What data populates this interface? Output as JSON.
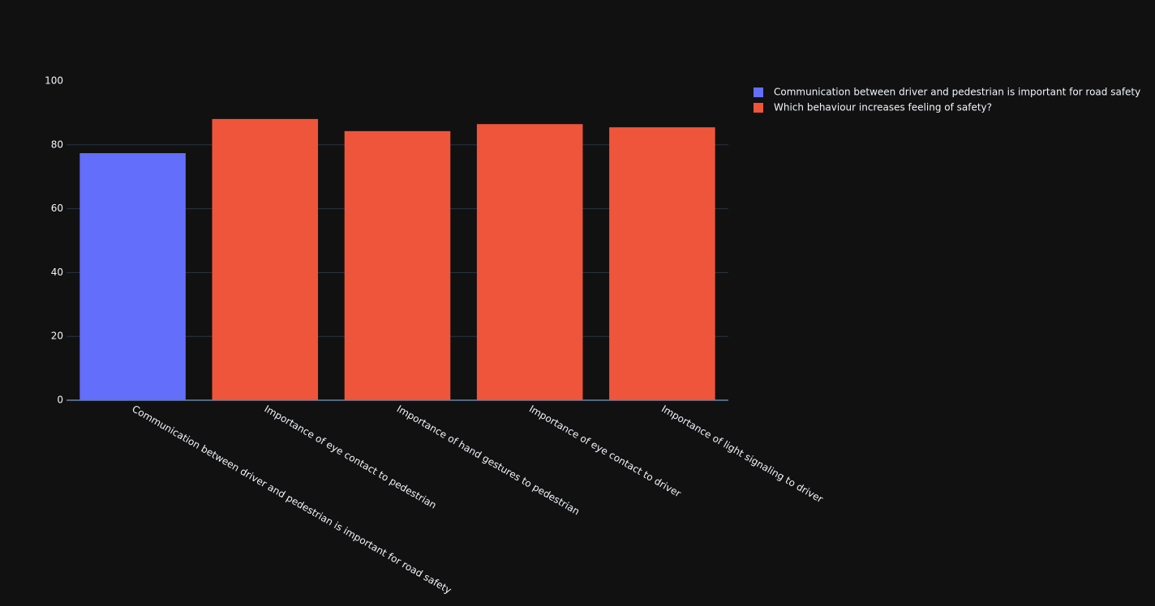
{
  "chart_data": {
    "type": "bar",
    "categories": [
      "Communication between driver and pedestrian is important for road safety",
      "Importance of eye contact to pedestrian",
      "Importance of hand gestures to pedestrian",
      "Importance of eye contact to driver",
      "Importance of light signaling to driver"
    ],
    "series": [
      {
        "name": "Communication between driver and pedestrian is important for road safety",
        "color": "#636efa",
        "values": [
          77.4,
          null,
          null,
          null,
          null
        ]
      },
      {
        "name": "Which behaviour increases feeling of safety?",
        "color": "#ef553b",
        "values": [
          null,
          88.1,
          84.3,
          86.5,
          85.5
        ]
      }
    ],
    "ylim": [
      0,
      100
    ],
    "yticks": [
      0,
      20,
      40,
      60,
      80,
      100
    ],
    "grid": true,
    "legend": "right"
  }
}
